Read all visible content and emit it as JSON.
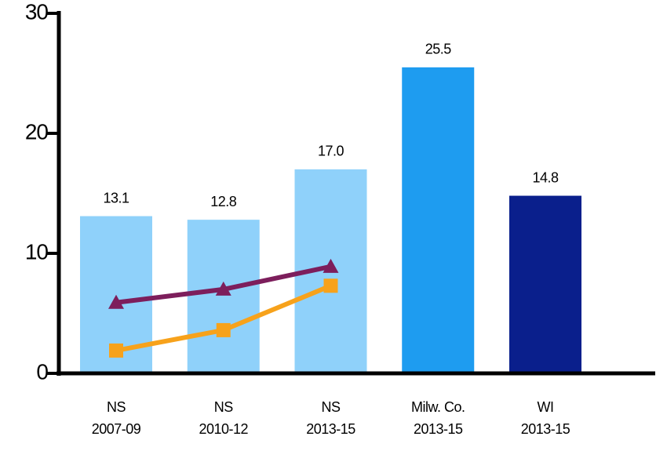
{
  "chart_data": {
    "type": "bar",
    "categories": [
      [
        "NS",
        "2007-09"
      ],
      [
        "NS",
        "2010-12"
      ],
      [
        "NS",
        "2013-15"
      ],
      [
        "Milw. Co.",
        "2013-15"
      ],
      [
        "WI",
        "2013-15"
      ]
    ],
    "values": [
      13.1,
      12.8,
      17.0,
      25.5,
      14.8
    ],
    "value_labels": [
      "13.1",
      "12.8",
      "17.0",
      "25.5",
      "14.8"
    ],
    "colors": [
      "#8fd1fa",
      "#8fd1fa",
      "#8fd1fa",
      "#1e9cf0",
      "#0a1f8c"
    ],
    "series": [
      {
        "type": "line",
        "marker": "triangle",
        "color": "#7d1e5c",
        "values": [
          5.9,
          7.0,
          8.9,
          null,
          null
        ]
      },
      {
        "type": "line",
        "marker": "square",
        "color": "#f7a21b",
        "values": [
          1.9,
          3.6,
          7.3,
          null,
          null
        ]
      }
    ],
    "ylim": [
      0,
      30
    ],
    "yticks": [
      0,
      10,
      20,
      30
    ],
    "grid": false
  }
}
